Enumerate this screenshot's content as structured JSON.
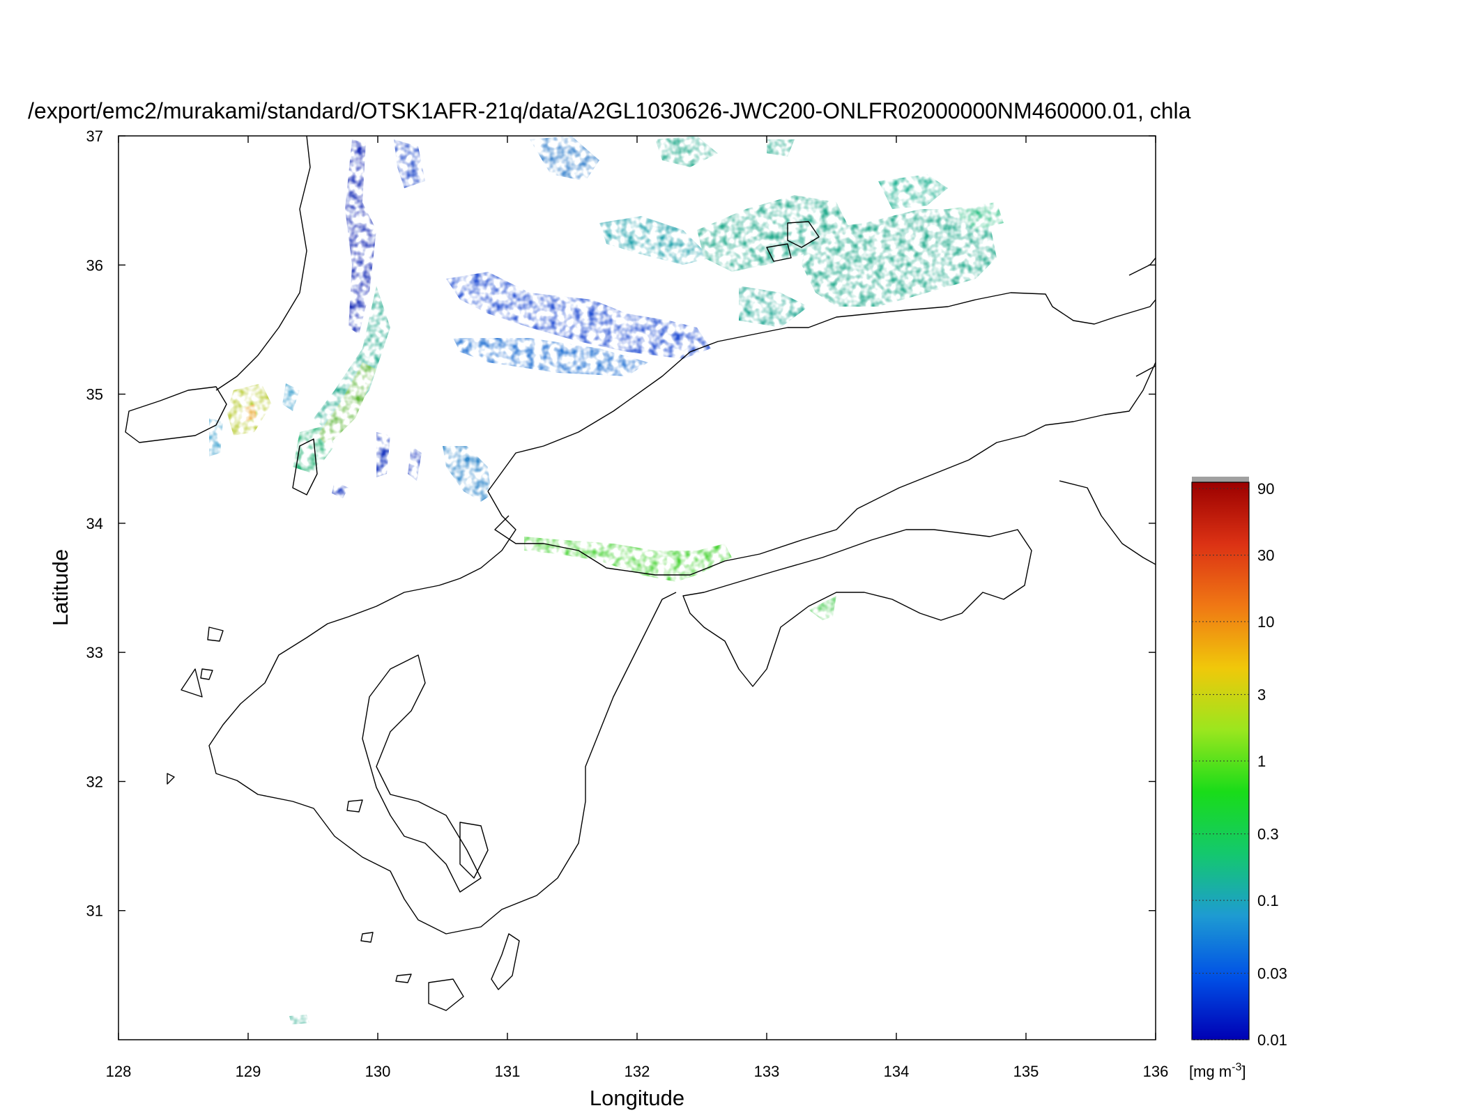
{
  "title": "/export/emc2/murakami/standard/OTSK1AFR-21q/data/A2GL1030626-JWC200-ONLFR02000000NM460000.01, chla",
  "map": {
    "xlabel": "Longitude",
    "ylabel": "Latitude",
    "xlim": [
      128,
      136
    ],
    "ylim": [
      30,
      37
    ],
    "xticks": [
      128,
      129,
      130,
      131,
      132,
      133,
      134,
      135,
      136
    ],
    "yticks": [
      31,
      32,
      33,
      34,
      35,
      36,
      37
    ],
    "xtick_labels": [
      "128",
      "129",
      "130",
      "131",
      "132",
      "133",
      "134",
      "135",
      "136"
    ],
    "ytick_labels": [
      "31",
      "32",
      "33",
      "34",
      "35",
      "36",
      "37"
    ],
    "variable": "chla",
    "coastline_color": "#000000"
  },
  "colorbar": {
    "unit_prefix": "[mg m",
    "unit_exp": "-3",
    "unit_suffix": "]",
    "scale": "log",
    "range": [
      0.01,
      100
    ],
    "ticks": [
      0.01,
      0.03,
      0.1,
      0.3,
      1,
      3,
      10,
      30,
      90
    ],
    "tick_labels": [
      "0.01",
      "0.03",
      "0.1",
      "0.3",
      "1",
      "3",
      "10",
      "30",
      "90"
    ],
    "colors": [
      "#0000b4",
      "#0050e6",
      "#1e9bd2",
      "#14c86e",
      "#19dc19",
      "#9be61e",
      "#f0c80a",
      "#f07814",
      "#dc3214",
      "#9b0000"
    ],
    "overflow_color": "#a0a0a0"
  },
  "patches": [
    {
      "region": "nw-stream-1",
      "color": "#1428b4",
      "lon": 129.9,
      "lat": 36.7
    },
    {
      "region": "sea-of-japan-blue",
      "color": "#1e5ad2",
      "lon": 131.2,
      "lat": 35.7
    },
    {
      "region": "sea-of-japan-green",
      "color": "#23aa8c",
      "lon": 133.7,
      "lat": 36.1
    },
    {
      "region": "tsushima-strait",
      "color": "#5ab432",
      "lon": 129.7,
      "lat": 34.9
    },
    {
      "region": "goto-high",
      "color": "#b4c828",
      "lon": 129.0,
      "lat": 34.8
    },
    {
      "region": "hibiki-nada",
      "color": "#2882c8",
      "lon": 130.6,
      "lat": 34.4
    },
    {
      "region": "seto-inland-sea",
      "color": "#46d232",
      "lon": 131.9,
      "lat": 33.7
    },
    {
      "region": "tosa-bay",
      "color": "#3cc846",
      "lon": 133.4,
      "lat": 33.4
    },
    {
      "region": "south-islet",
      "color": "#28aa8c",
      "lon": 129.4,
      "lat": 30.2
    }
  ]
}
